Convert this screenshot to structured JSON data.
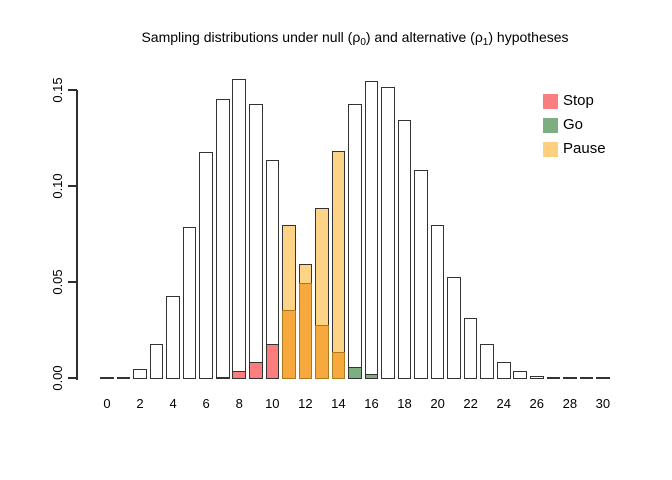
{
  "title": {
    "prefix": "Sampling distributions under null (ρ",
    "sub0": "0",
    "mid": ") and alternative (ρ",
    "sub1": "1",
    "suffix": ") hypotheses"
  },
  "y_axis": {
    "tick_labels": [
      "0.00",
      "0.05",
      "0.10",
      "0.15"
    ],
    "tick_values": [
      0,
      0.05,
      0.1,
      0.15
    ]
  },
  "x_axis": {
    "tick_labels": [
      "0",
      "2",
      "4",
      "6",
      "8",
      "10",
      "12",
      "14",
      "16",
      "18",
      "20",
      "22",
      "24",
      "26",
      "28",
      "30"
    ],
    "tick_values": [
      0,
      2,
      4,
      6,
      8,
      10,
      12,
      14,
      16,
      18,
      20,
      22,
      24,
      26,
      28,
      30
    ]
  },
  "legend": {
    "position": "top-right",
    "items": [
      {
        "label": "Stop",
        "color": "#FB7E7E"
      },
      {
        "label": "Go",
        "color": "#7CAE81"
      },
      {
        "label": "Pause",
        "color": "#FDD07F"
      }
    ]
  },
  "colors": {
    "bar_fill_default": "#FFFFFF",
    "bar_border": "#333333",
    "stop": "#FB7E7E",
    "go": "#7CAE81",
    "pause_light": "#FDD386",
    "pause_dark": "#F8A93E",
    "pause_front_border": "#AA7A1F",
    "axis": "#2E2E2E"
  },
  "chart_data": {
    "type": "bar",
    "title": "Sampling distributions under null (ρ0) and alternative (ρ1) hypotheses",
    "xlabel": "",
    "ylabel": "",
    "ylim": [
      0,
      0.15
    ],
    "grid": false,
    "legend_position": "top-right",
    "x": [
      0,
      1,
      2,
      3,
      4,
      5,
      6,
      7,
      8,
      9,
      10,
      11,
      12,
      13,
      14,
      15,
      16,
      17,
      18,
      19,
      20,
      21,
      22,
      23,
      24,
      25,
      26,
      27,
      28,
      29,
      30
    ],
    "series": [
      {
        "name": "null (ρ0)",
        "values": [
          0.0001,
          0.001,
          0.005,
          0.018,
          0.043,
          0.079,
          0.118,
          0.146,
          0.156,
          0.143,
          0.114,
          0.08,
          0.05,
          0.028,
          0.014,
          0.006,
          0.0025,
          0.0008,
          0.0003,
          0,
          0,
          0,
          0,
          0,
          0,
          0,
          0,
          0,
          0,
          0,
          0
        ]
      },
      {
        "name": "alternative (ρ1)",
        "values": [
          0,
          0,
          0,
          0,
          0,
          0,
          0.0003,
          0.001,
          0.004,
          0.009,
          0.018,
          0.036,
          0.06,
          0.089,
          0.119,
          0.143,
          0.155,
          0.152,
          0.135,
          0.109,
          0.08,
          0.053,
          0.032,
          0.018,
          0.009,
          0.004,
          0.0015,
          0.0006,
          0.0002,
          0.0001,
          0
        ]
      }
    ],
    "decision_regions": [
      {
        "label": "Stop",
        "x_range": [
          0,
          10
        ],
        "colored_series": "alternative"
      },
      {
        "label": "Pause",
        "x_range": [
          11,
          14
        ],
        "colored_series": "both"
      },
      {
        "label": "Go",
        "x_range": [
          15,
          30
        ],
        "colored_series": "null"
      }
    ]
  }
}
